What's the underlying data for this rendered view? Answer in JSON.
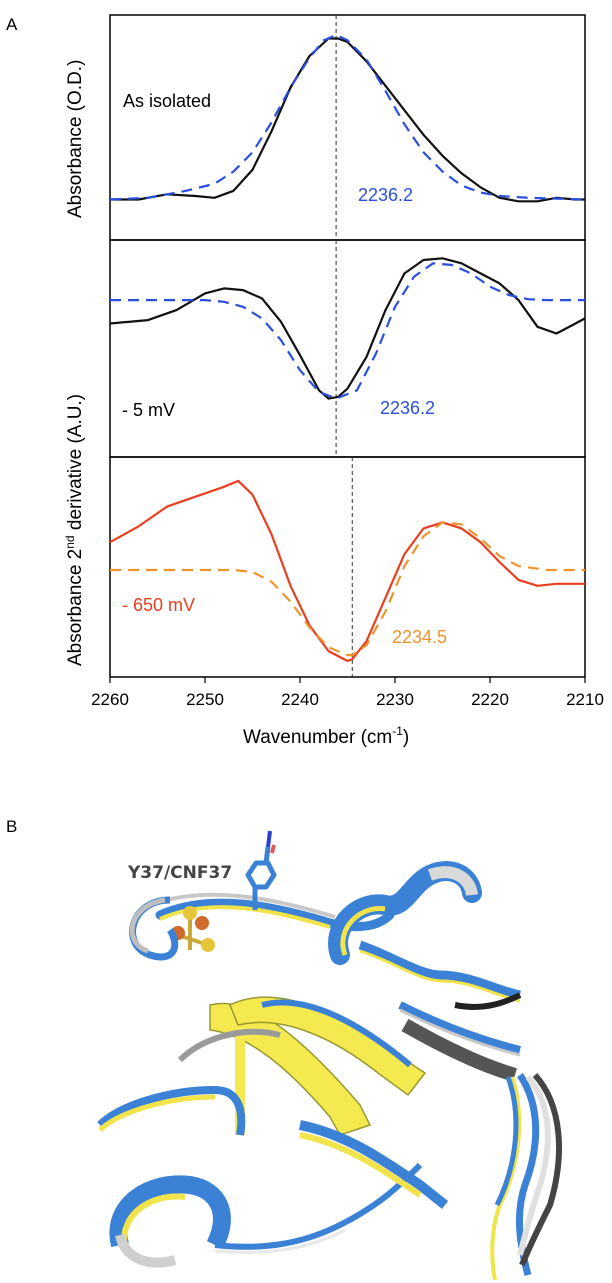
{
  "panel_a_letter": "A",
  "panel_b_letter": "B",
  "colors": {
    "black": "#111111",
    "blue": "#2a4fe0",
    "red": "#e8401e",
    "orange": "#f0932e",
    "blue_text": "#2a4fe0",
    "red_text": "#e8401e",
    "orange_text": "#f0932e"
  },
  "chart_data": {
    "type": "line",
    "xlabel": "Wavenumber (cm",
    "xlabel_sup": "-1",
    "xlabel_end": ")",
    "xlim": [
      2260,
      2210
    ],
    "xticks": [
      2260,
      2250,
      2240,
      2230,
      2220,
      2210
    ],
    "x_reversed": true,
    "ylabel_top": "Absorbance (O.D.)",
    "ylabel_bottom_pre": "Absorbance 2",
    "ylabel_bottom_sup": "nd",
    "ylabel_bottom_post": " derivative (A.U.)",
    "panels": [
      {
        "annotation": "As isolated",
        "peak_label": "2236.2",
        "marker_x": 2236.2,
        "ylim": [
          0,
          1
        ],
        "series": [
          {
            "style": "solid",
            "color_key": "black",
            "x": [
              2260,
              2257,
              2254,
              2251,
              2249,
              2247,
              2245,
              2243,
              2241,
              2239,
              2237,
              2236,
              2235,
              2233,
              2231,
              2229,
              2227,
              2225,
              2223,
              2221,
              2219,
              2217,
              2215,
              2213,
              2211,
              2210
            ],
            "y": [
              0.06,
              0.06,
              0.09,
              0.08,
              0.07,
              0.11,
              0.23,
              0.45,
              0.7,
              0.88,
              0.98,
              0.98,
              0.96,
              0.85,
              0.71,
              0.57,
              0.43,
              0.31,
              0.21,
              0.13,
              0.07,
              0.05,
              0.05,
              0.07,
              0.06,
              0.06
            ]
          },
          {
            "style": "dashed",
            "color_key": "blue",
            "x": [
              2260,
              2256,
              2252,
              2249,
              2247,
              2245,
              2243,
              2241,
              2239,
              2237.5,
              2236.2,
              2235,
              2233,
              2231,
              2229,
              2227,
              2225,
              2223,
              2221,
              2219,
              2216,
              2213,
              2210
            ],
            "y": [
              0.06,
              0.07,
              0.11,
              0.15,
              0.22,
              0.33,
              0.5,
              0.7,
              0.87,
              0.97,
              1.0,
              0.97,
              0.86,
              0.68,
              0.49,
              0.33,
              0.22,
              0.14,
              0.1,
              0.08,
              0.07,
              0.065,
              0.06
            ]
          }
        ]
      },
      {
        "annotation": "- 5 mV",
        "peak_label": "2236.2",
        "marker_x": 2236.2,
        "ylim": [
          0,
          1
        ],
        "series": [
          {
            "style": "solid",
            "color_key": "black",
            "x": [
              2260,
              2256,
              2253,
              2250,
              2248,
              2246,
              2244,
              2242,
              2240,
              2238,
              2237,
              2236,
              2235,
              2233,
              2231,
              2229,
              2227,
              2225,
              2223,
              2221,
              2219,
              2217,
              2215,
              2213,
              2211,
              2210
            ],
            "y": [
              0.62,
              0.64,
              0.7,
              0.8,
              0.83,
              0.82,
              0.77,
              0.63,
              0.43,
              0.22,
              0.17,
              0.18,
              0.23,
              0.42,
              0.7,
              0.92,
              1.0,
              1.01,
              0.98,
              0.92,
              0.86,
              0.76,
              0.6,
              0.56,
              0.62,
              0.65
            ],
            "sample_points_note": ""
          },
          {
            "style": "dashed",
            "color_key": "blue",
            "x": [
              2260,
              2255,
              2252,
              2250,
              2248,
              2246,
              2244,
              2242,
              2240,
              2238,
              2236.2,
              2234,
              2232,
              2230,
              2228,
              2226,
              2224,
              2222,
              2220,
              2218,
              2216,
              2214,
              2210
            ],
            "y": [
              0.76,
              0.76,
              0.76,
              0.76,
              0.75,
              0.72,
              0.65,
              0.52,
              0.34,
              0.21,
              0.17,
              0.22,
              0.44,
              0.72,
              0.9,
              0.98,
              0.97,
              0.92,
              0.84,
              0.79,
              0.765,
              0.76,
              0.76
            ]
          }
        ]
      },
      {
        "annotation": "- 650 mV",
        "peak_label": "2234.5",
        "marker_x": 2234.5,
        "ylim": [
          0,
          1
        ],
        "series": [
          {
            "style": "solid",
            "color_key": "red",
            "x": [
              2260,
              2257,
              2254,
              2251,
              2248,
              2246.5,
              2245,
              2243,
              2241,
              2239,
              2237,
              2235,
              2234.5,
              2233,
              2231,
              2229,
              2227,
              2225,
              2223,
              2221,
              2219,
              2217,
              2215,
              2213,
              2211,
              2210
            ],
            "y": [
              0.62,
              0.7,
              0.8,
              0.85,
              0.9,
              0.93,
              0.86,
              0.66,
              0.4,
              0.2,
              0.07,
              0.02,
              0.03,
              0.12,
              0.34,
              0.56,
              0.69,
              0.72,
              0.69,
              0.62,
              0.52,
              0.43,
              0.4,
              0.41,
              0.41,
              0.41
            ]
          },
          {
            "style": "dashed",
            "color_key": "orange",
            "x": [
              2260,
              2255,
              2250,
              2247,
              2245,
              2243,
              2241,
              2239,
              2237,
              2235,
              2234.5,
              2233,
              2231,
              2229,
              2227,
              2225,
              2223,
              2221,
              2219,
              2217,
              2214,
              2210
            ],
            "y": [
              0.48,
              0.48,
              0.48,
              0.48,
              0.47,
              0.42,
              0.32,
              0.19,
              0.09,
              0.05,
              0.05,
              0.1,
              0.27,
              0.5,
              0.65,
              0.72,
              0.71,
              0.64,
              0.55,
              0.5,
              0.48,
              0.48
            ]
          }
        ]
      }
    ]
  },
  "panel_b": {
    "residue_label": "Y37/CNF37"
  }
}
